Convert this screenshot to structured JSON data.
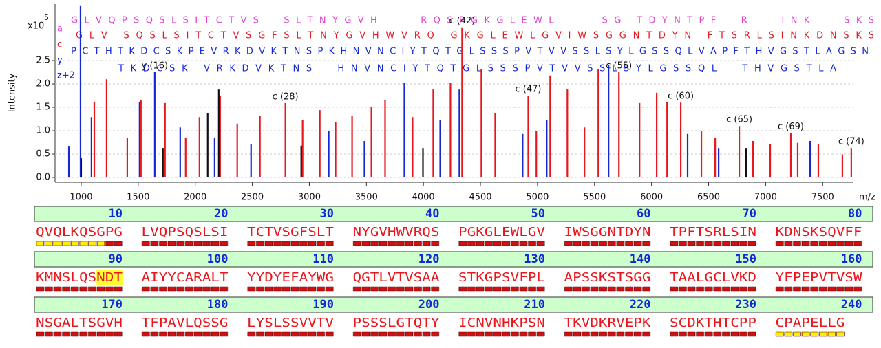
{
  "chart_data": {
    "type": "spectrum",
    "y_label": "Intensity",
    "y_scale_label": "x10",
    "y_scale_exponent": "5",
    "x_label": "m/z",
    "xlim": [
      771,
      7770
    ],
    "ylim": [
      0,
      3.7
    ],
    "xticks": [
      1000,
      1500,
      2000,
      2500,
      3000,
      3500,
      4000,
      4500,
      5000,
      5500,
      6000,
      6500,
      7000,
      7500
    ],
    "yticks": [
      {
        "value": 0,
        "label": "0.0"
      },
      0.5,
      {
        "value": 1,
        "label": "1.0"
      },
      1.5,
      {
        "value": 2,
        "label": "2.0"
      },
      2.5
    ],
    "grid": true,
    "series": [
      {
        "color": "#e8171e",
        "x": [
          1115,
          1223,
          1404,
          1524,
          1735,
          1916,
          2037,
          2218,
          2368,
          2567,
          2790,
          2941,
          3092,
          3230,
          3375,
          3544,
          3664,
          3905,
          4086,
          4237,
          4339,
          4508,
          4629,
          4919,
          4990,
          5111,
          5262,
          5412,
          5533,
          5714,
          5895,
          6045,
          6136,
          6256,
          6437,
          6558,
          6769,
          6889,
          7040,
          7221,
          7281,
          7462,
          7673,
          7751
        ],
        "values": [
          1.62,
          2.1,
          0.85,
          1.65,
          1.59,
          0.85,
          1.29,
          1.74,
          1.15,
          1.32,
          1.59,
          1.22,
          1.44,
          1.18,
          1.32,
          1.51,
          1.65,
          1.29,
          1.88,
          2.03,
          3.21,
          2.32,
          1.37,
          1.75,
          1.0,
          2.18,
          1.88,
          1.07,
          2.32,
          2.25,
          1.59,
          1.81,
          1.62,
          1.6,
          1.0,
          0.85,
          1.1,
          0.78,
          0.71,
          0.95,
          0.74,
          0.71,
          0.49,
          0.63
        ],
        "labels": [
          null,
          null,
          null,
          null,
          null,
          null,
          null,
          null,
          null,
          null,
          "c (28)",
          null,
          null,
          null,
          null,
          null,
          null,
          null,
          null,
          null,
          "c (42)",
          null,
          null,
          "c (47)",
          null,
          null,
          null,
          null,
          null,
          "c (55)",
          null,
          null,
          null,
          "c (60)",
          null,
          null,
          "c (65)",
          null,
          null,
          "c (69)",
          null,
          null,
          null,
          "c (74)"
        ]
      },
      {
        "color": "#1428d8",
        "x": [
          892,
          994,
          1090,
          1512,
          1645,
          1868,
          2170,
          2489,
          3170,
          3483,
          3833,
          4147,
          4315,
          4870,
          5081,
          5623,
          6316,
          6588,
          7390
        ],
        "values": [
          0.66,
          3.68,
          1.29,
          1.62,
          2.25,
          1.07,
          0.85,
          0.71,
          1.0,
          0.78,
          2.03,
          1.22,
          1.88,
          0.93,
          1.22,
          2.4,
          0.93,
          0.63,
          0.78
        ],
        "labels": [
          null,
          null,
          null,
          null,
          "y (16)",
          null,
          null,
          null,
          null,
          null,
          null,
          null,
          null,
          null,
          null,
          null,
          null,
          null,
          null
        ]
      },
      {
        "color": "#111111",
        "x": [
          1000,
          1717,
          2109,
          2206,
          2929,
          3996,
          6829
        ],
        "values": [
          0.41,
          0.63,
          1.37,
          1.88,
          0.68,
          0.63,
          0.63
        ]
      }
    ],
    "fragment_rows": [
      {
        "ion": "a",
        "color": "#e040d0",
        "residues": "G L V Q P S Q S L S I T C T V S     S L T N Y G V H         R Q S P G K G L E W L          S G   T D Y N T P F     R       I N K       S K S"
      },
      {
        "ion": "c",
        "color": "#e8171e",
        "residues": "G L V   S Q S L S I T C T V S G F S L T N Y G V H W V R Q   G K G L E W L G V I W S G G N T D Y N   F T S R L S I N K D N S K S"
      },
      {
        "ion": "y",
        "color": "#1428d8",
        "residues": "P C T H T K D C S K P E V R K D V K T N S P K H N V N C I Y T Q T G L S S S P V T V V S S L S Y L G S S Q L V A P F T H V G S T L A G S N"
      },
      {
        "ion": "z+2",
        "color": "#1428d8",
        "residues": "T K D C S K   V R K D V K T N S     H N V N C I Y T Q T G L S S S P V T V V S S L S Y L G S S Q L     T H V G S T L A"
      }
    ]
  },
  "sequence": {
    "highlight_color": "#ffff33",
    "rows": [
      {
        "positions": [
          10,
          20,
          30,
          40,
          50,
          60,
          70,
          80
        ],
        "blocks": [
          "QVQLKQSGPG",
          "LVQPSQSLSI",
          "TCTVSGFSLT",
          "NYGVHWVRQS",
          "PGKGLEWLGV",
          "IWSGGNTDYN",
          "TPFTSRLSIN",
          "KDNSKSQVFF"
        ]
      },
      {
        "positions": [
          90,
          100,
          110,
          120,
          130,
          140,
          150,
          160
        ],
        "blocks": [
          [
            "KMNSLQS",
            "NDT"
          ],
          "AIYYCARALT",
          "YYDYEFAYWG",
          "QGTLVTVSAA",
          "STKGPSVFPL",
          "APSSKSTSGG",
          "TAALGCLVKD",
          "YFPEPVTVSW"
        ]
      },
      {
        "positions": [
          170,
          180,
          190,
          200,
          210,
          220,
          230,
          240
        ],
        "blocks": [
          "NSGALTSGVH",
          "TFPAVLQSSG",
          "LYSLSSVVTV",
          "PSSSLGTQTY",
          "ICNVNHKPSN",
          "TKVDKRVEPK",
          "SCDKTHTCPP",
          "CPAPELLG"
        ]
      }
    ]
  }
}
